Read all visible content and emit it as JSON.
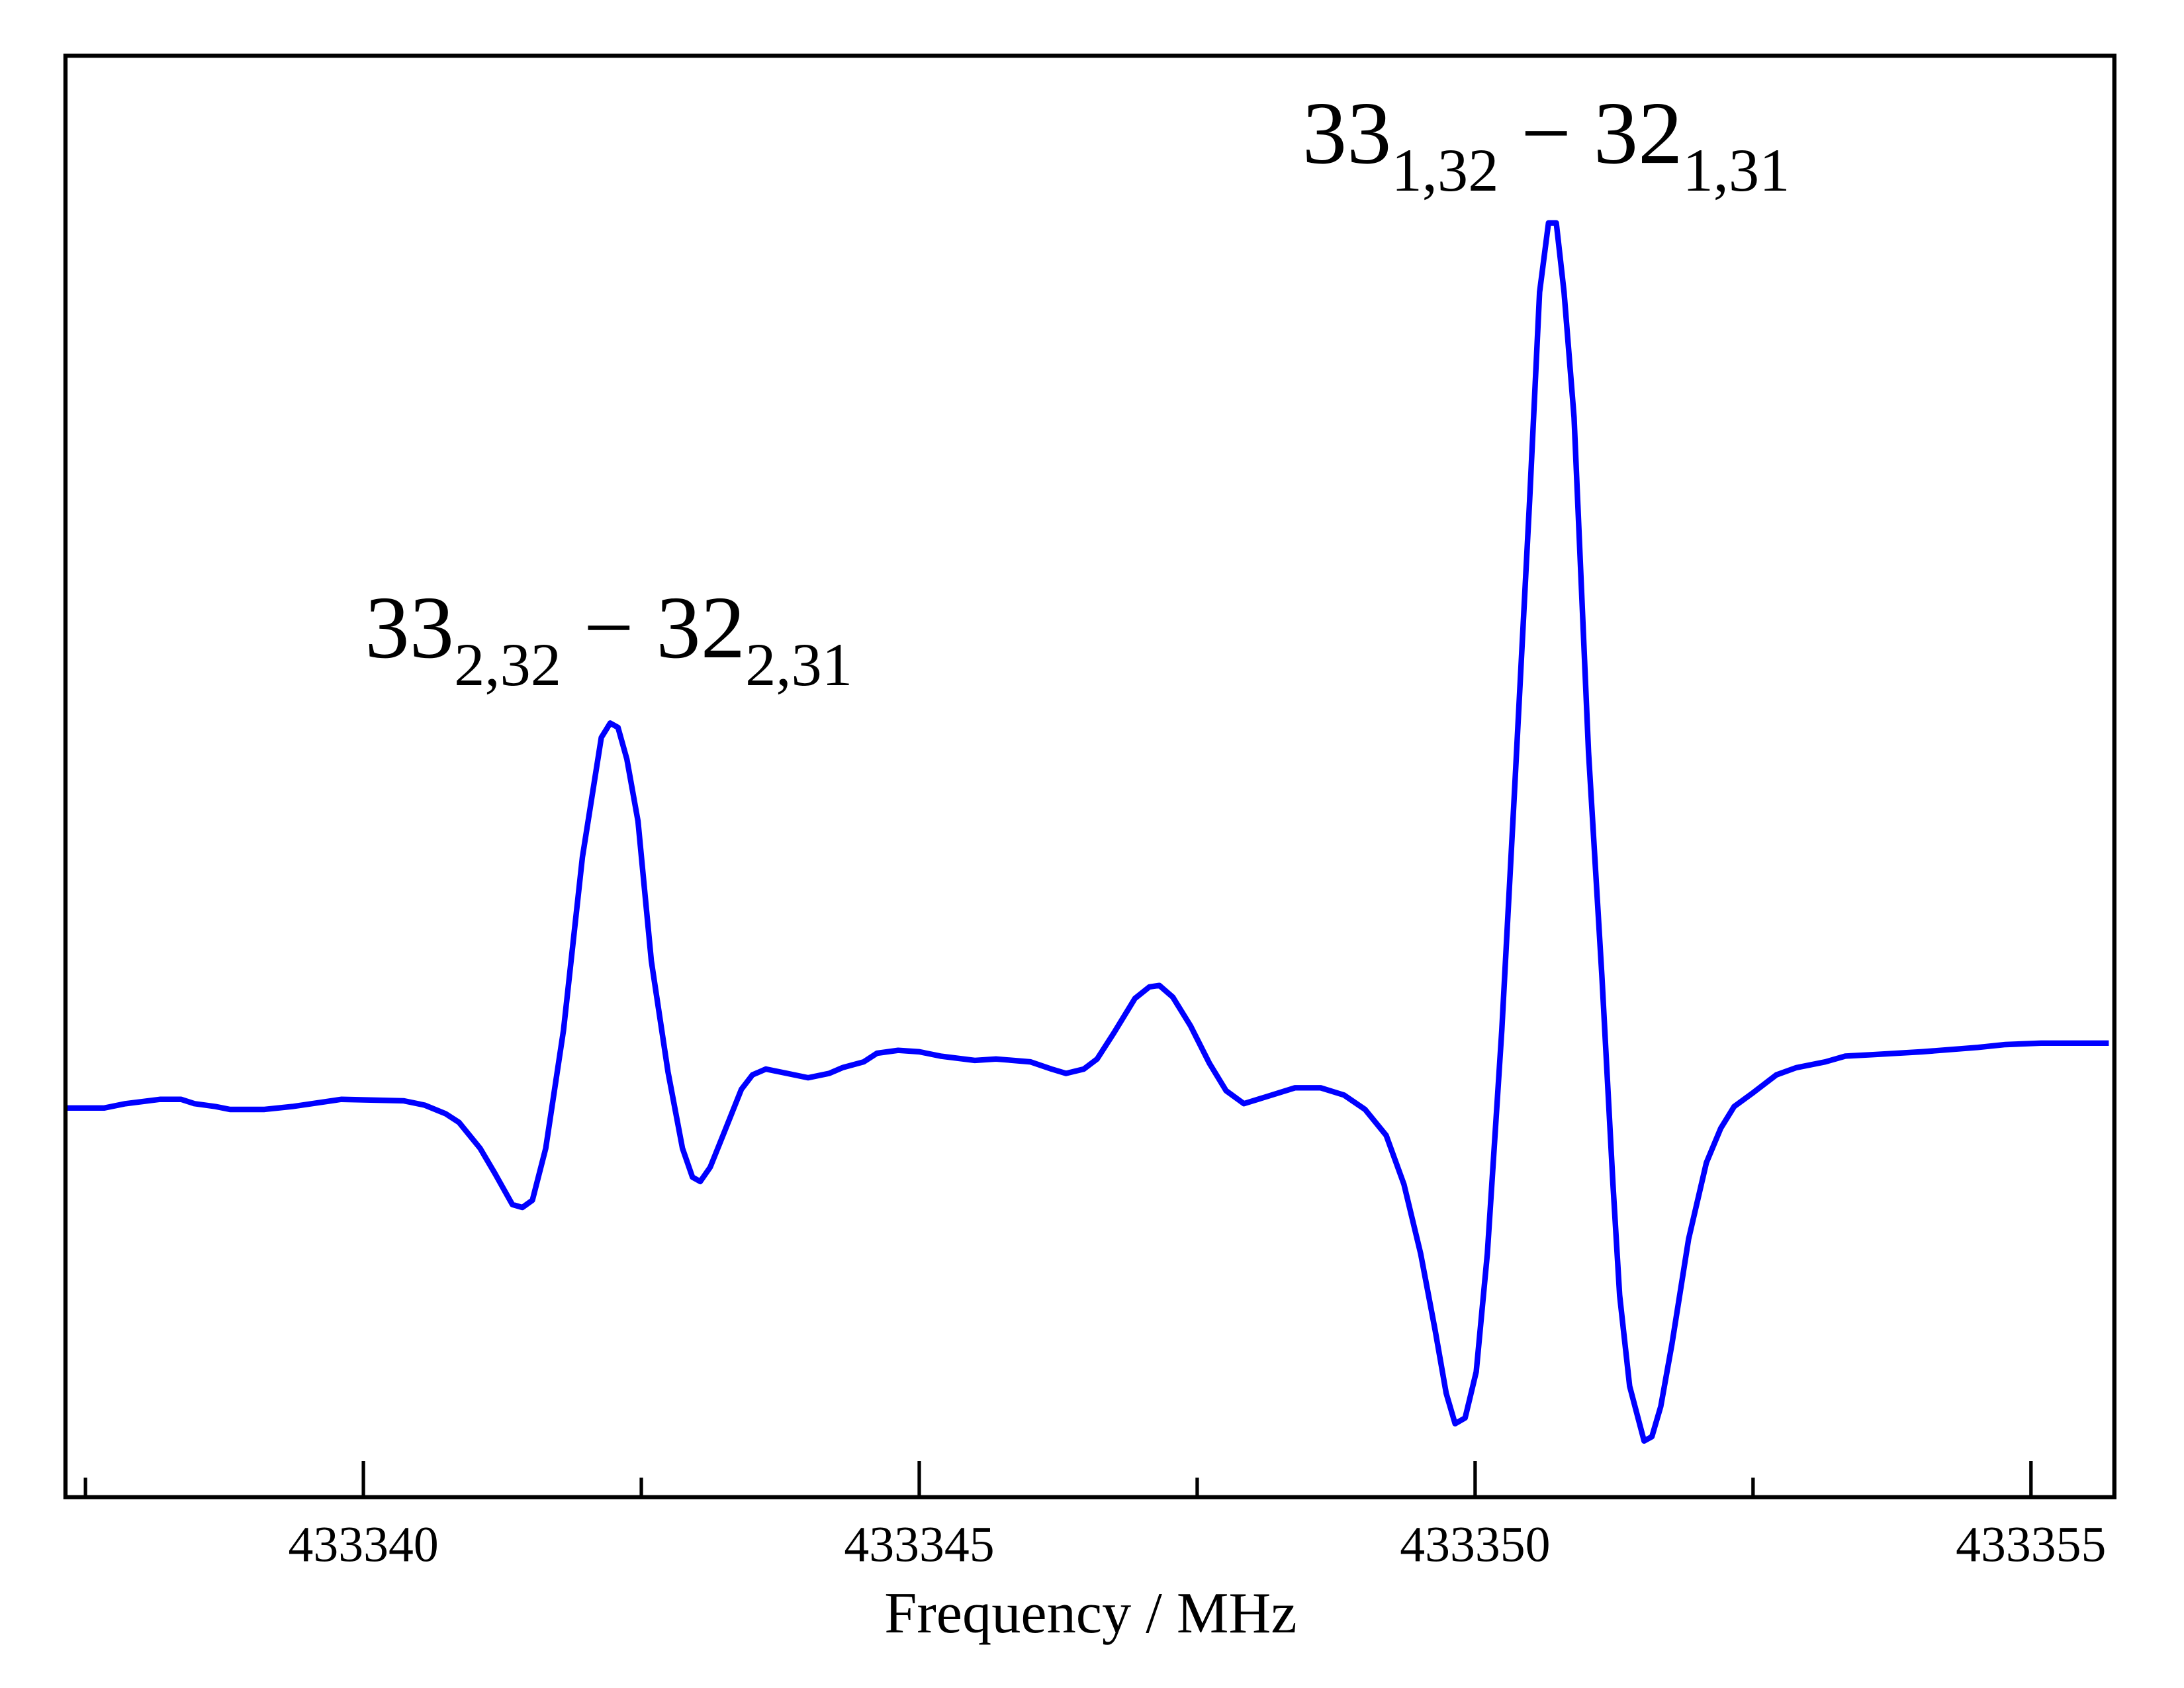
{
  "chart_data": {
    "type": "line",
    "x_label": "Frequency / MHz",
    "annotations": [
      {
        "base1": "33",
        "sub1": "2,32",
        "sep": " − 32",
        "sub2": "2,31"
      },
      {
        "base1": "33",
        "sub1": "1,32",
        "sep": " − 32",
        "sub2": "1,31"
      }
    ],
    "xlim": [
      433337.32,
      433355.75
    ],
    "xticks": [
      433340,
      433345,
      433350,
      433355
    ],
    "xminorticks": [
      433337.5,
      433342.5,
      433347.5,
      433352.5
    ],
    "ylim": [
      0,
      100
    ],
    "x": [
      433337.32,
      433337.67,
      433337.86,
      433338.17,
      433338.36,
      433338.48,
      433338.67,
      433338.8,
      433339.11,
      433339.36,
      433339.8,
      433340.36,
      433340.55,
      433340.74,
      433340.86,
      433341.05,
      433341.18,
      433341.34,
      433341.43,
      433341.52,
      433341.64,
      433341.8,
      433341.97,
      433342.14,
      433342.22,
      433342.29,
      433342.37,
      433342.47,
      433342.59,
      433342.74,
      433342.87,
      433342.96,
      433343.03,
      433343.12,
      433343.25,
      433343.4,
      433343.5,
      433343.62,
      433343.81,
      433344.0,
      433344.19,
      433344.31,
      433344.5,
      433344.62,
      433344.81,
      433345.0,
      433345.19,
      433345.5,
      433345.69,
      433346.0,
      433346.19,
      433346.32,
      433346.48,
      433346.6,
      433346.75,
      433346.94,
      433347.07,
      433347.16,
      433347.28,
      433347.44,
      433347.61,
      433347.76,
      433347.92,
      433348.13,
      433348.38,
      433348.61,
      433348.82,
      433349.01,
      433349.2,
      433349.36,
      433349.51,
      433349.64,
      433349.74,
      433349.82,
      433349.91,
      433350.01,
      433350.11,
      433350.24,
      433350.36,
      433350.49,
      433350.58,
      433350.66,
      433350.73,
      433350.8,
      433350.89,
      433351.02,
      433351.14,
      433351.24,
      433351.3,
      433351.39,
      433351.52,
      433351.59,
      433351.67,
      433351.77,
      433351.92,
      433352.08,
      433352.21,
      433352.33,
      433352.49,
      433352.71,
      433352.89,
      433353.15,
      433353.33,
      433353.58,
      433354.02,
      433354.52,
      433354.77,
      433355.09,
      433355.7
    ],
    "series": [
      {
        "color": "#0000ff",
        "values": [
          27.0,
          27.0,
          27.3,
          27.6,
          27.6,
          27.3,
          27.1,
          26.9,
          26.9,
          27.1,
          27.6,
          27.5,
          27.2,
          26.6,
          26.0,
          24.2,
          22.5,
          20.3,
          20.1,
          20.6,
          24.2,
          32.4,
          44.4,
          52.7,
          53.7,
          53.4,
          51.2,
          46.9,
          37.2,
          29.5,
          24.2,
          22.2,
          21.9,
          22.9,
          25.4,
          28.3,
          29.3,
          29.7,
          29.4,
          29.1,
          29.4,
          29.8,
          30.2,
          30.8,
          31.0,
          30.9,
          30.6,
          30.3,
          30.4,
          30.2,
          29.7,
          29.4,
          29.7,
          30.4,
          32.2,
          34.6,
          35.4,
          35.5,
          34.7,
          32.7,
          30.1,
          28.2,
          27.3,
          27.8,
          28.4,
          28.4,
          27.9,
          26.9,
          25.1,
          21.7,
          16.9,
          11.6,
          7.2,
          5.1,
          5.5,
          8.7,
          16.9,
          32.4,
          49.8,
          69.1,
          83.6,
          88.4,
          88.4,
          83.6,
          74.9,
          51.7,
          36.2,
          21.7,
          14.0,
          7.7,
          3.9,
          4.2,
          6.3,
          10.6,
          17.9,
          23.2,
          25.6,
          27.1,
          28.0,
          29.3,
          29.8,
          30.2,
          30.6,
          30.7,
          30.9,
          31.2,
          31.4,
          31.5,
          31.5
        ]
      }
    ]
  }
}
